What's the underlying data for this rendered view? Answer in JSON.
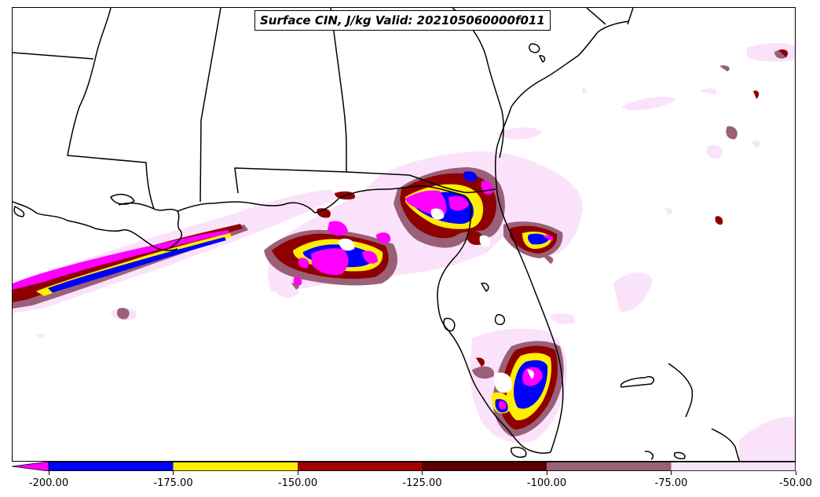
{
  "title": "Surface CIN, J/kg Valid: 202105060000f011",
  "colorbar": {
    "levels": [
      {
        "label": "-200.00",
        "value": -200
      },
      {
        "label": "-175.00",
        "value": -175
      },
      {
        "label": "-150.00",
        "value": -150
      },
      {
        "label": "-125.00",
        "value": -125
      },
      {
        "label": "-100.00",
        "value": -100
      },
      {
        "label": "-75.00",
        "value": -75
      },
      {
        "label": "-50.00",
        "value": -50
      }
    ],
    "colors": [
      "#ff00ff",
      "#0000ff",
      "#ffee00",
      "#a00000",
      "#5a0000",
      "#9a6078",
      "#fbe2fb"
    ],
    "extend": "min"
  },
  "map": {
    "region": "Southeastern United States, Gulf of Mexico and Florida",
    "variable": "Surface CIN",
    "units": "J/kg"
  }
}
